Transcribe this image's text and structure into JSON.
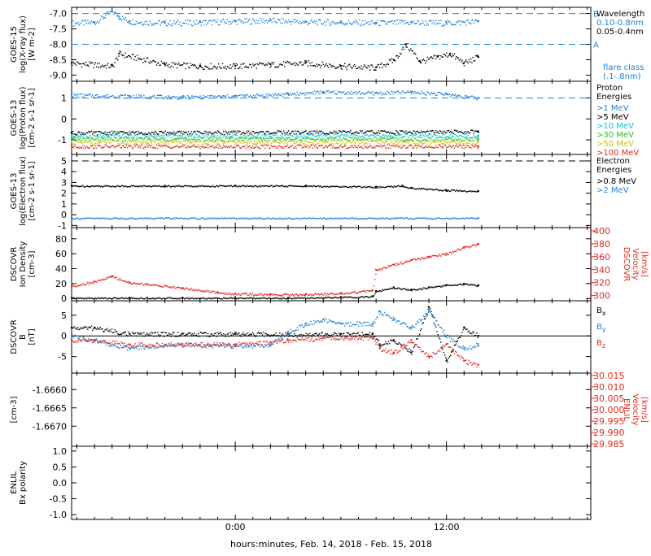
{
  "xaxis": {
    "label": "hours:minutes, Feb. 14, 2018 - Feb. 15, 2018",
    "ticks": [
      "0:00",
      "12:00"
    ],
    "range_hours": [
      -9.3,
      20.2
    ],
    "tick_hours": [
      0,
      12
    ],
    "minor_step_hours": 1,
    "data_end_hours": 13.8
  },
  "colors": {
    "black": "#000000",
    "blue": "#1f7fd6",
    "cyan": "#00c8d8",
    "green": "#33bb22",
    "yellow": "#c8c800",
    "red": "#e02a1f",
    "dashed_blue": "#1f7fd6"
  },
  "chart_data": [
    {
      "type": "scatter",
      "ylabel": [
        "GOES-15",
        "log(X-ray flux)",
        "[W m-2]"
      ],
      "ylim": [
        -9.2,
        -6.8
      ],
      "yticks": [
        -7.0,
        -7.5,
        -8.0,
        -8.5,
        -9.0
      ],
      "ytick_labels": [
        "-7.0",
        "-7.5",
        "-8.0",
        "-8.5",
        "-9.0"
      ],
      "reference_lines": [
        {
          "value": -7.0,
          "label": "B"
        },
        {
          "value": -8.0,
          "label": "A"
        }
      ],
      "legend": {
        "title": "Wavelength",
        "entries": [
          {
            "label": "0.10-0.8nm",
            "color": "blue"
          },
          {
            "label": "0.05-0.4nm",
            "color": "black"
          }
        ],
        "note": [
          "flare class",
          "(.1-.8nm)"
        ]
      },
      "series": [
        {
          "color": "blue",
          "x": [
            -9.3,
            -8.0,
            -7.0,
            -6.6,
            -6.0,
            -4.0,
            -2.0,
            0.0,
            2.0,
            4.0,
            6.0,
            8.0,
            10.0,
            12.0,
            13.8
          ],
          "y": [
            -7.3,
            -7.28,
            -6.92,
            -7.1,
            -7.25,
            -7.3,
            -7.28,
            -7.25,
            -7.22,
            -7.27,
            -7.28,
            -7.3,
            -7.28,
            -7.3,
            -7.25
          ]
        },
        {
          "color": "black",
          "x": [
            -9.3,
            -7.0,
            -6.6,
            -4.0,
            -2.0,
            0.0,
            2.0,
            4.0,
            6.0,
            8.0,
            9.0,
            9.7,
            10.5,
            11.5,
            12.2,
            13.0,
            13.8
          ],
          "y": [
            -8.6,
            -8.7,
            -8.3,
            -8.65,
            -8.7,
            -8.7,
            -8.65,
            -8.6,
            -8.7,
            -8.75,
            -8.5,
            -8.0,
            -8.55,
            -8.4,
            -8.3,
            -8.6,
            -8.4
          ]
        }
      ]
    },
    {
      "type": "scatter",
      "ylabel": [
        "GOES-13",
        "log(Proton flux)",
        "[cm-2 s-1 sr-1]"
      ],
      "ylim": [
        -1.7,
        1.8
      ],
      "yticks": [
        1,
        0,
        -1
      ],
      "ytick_labels": [
        "1",
        "0",
        "-1"
      ],
      "reference_lines": [
        {
          "value": 1.0,
          "label": ""
        }
      ],
      "legend": {
        "title": "Proton\nEnergies",
        "entries": [
          {
            "label": ">1 MeV",
            "color": "blue"
          },
          {
            "label": ">5 MeV",
            "color": "black"
          },
          {
            "label": ">10 MeV",
            "color": "cyan"
          },
          {
            "label": ">30 MeV",
            "color": "green"
          },
          {
            "label": ">50 MeV",
            "color": "yellow"
          },
          {
            "label": ">100 MeV",
            "color": "red"
          }
        ]
      },
      "series": [
        {
          "color": "blue",
          "x": [
            -9.3,
            -6.0,
            -3.0,
            0.0,
            3.0,
            5.0,
            8.0,
            10.0,
            12.0,
            13.8
          ],
          "y": [
            1.15,
            1.1,
            1.05,
            1.1,
            1.2,
            1.3,
            1.25,
            1.3,
            1.2,
            1.0
          ]
        },
        {
          "color": "black",
          "x": [
            -9.3,
            13.8
          ],
          "y": [
            -0.65,
            -0.6
          ]
        },
        {
          "color": "cyan",
          "x": [
            -9.3,
            13.8
          ],
          "y": [
            -0.8,
            -0.8
          ]
        },
        {
          "color": "green",
          "x": [
            -9.3,
            13.8
          ],
          "y": [
            -0.95,
            -0.95
          ]
        },
        {
          "color": "yellow",
          "x": [
            -9.3,
            13.8
          ],
          "y": [
            -1.1,
            -1.1
          ]
        },
        {
          "color": "red",
          "x": [
            -9.3,
            13.8
          ],
          "y": [
            -1.3,
            -1.3
          ]
        }
      ]
    },
    {
      "type": "scatter",
      "ylabel": [
        "GOES-13",
        "log(Electron flux)",
        "[cm-2 s-1 sr-1]"
      ],
      "ylim": [
        -1.2,
        5.6
      ],
      "yticks": [
        5,
        4,
        3,
        2,
        1,
        0,
        -1
      ],
      "ytick_labels": [
        "5",
        "4",
        "3",
        "2",
        "1",
        "0",
        "-1"
      ],
      "reference_lines": [
        {
          "value": 5.0,
          "label": ""
        }
      ],
      "legend": {
        "title": "Electron\nEnergies",
        "entries": [
          {
            "label": ">0.8 MeV",
            "color": "black"
          },
          {
            "label": ">2 MeV",
            "color": "blue"
          }
        ]
      },
      "series": [
        {
          "color": "black",
          "x": [
            -9.3,
            -4.0,
            0.0,
            4.0,
            8.0,
            9.5,
            10.0,
            12.0,
            13.8
          ],
          "y": [
            2.7,
            2.7,
            2.7,
            2.7,
            2.6,
            2.7,
            2.5,
            2.3,
            2.2
          ]
        },
        {
          "color": "blue",
          "x": [
            -9.3,
            13.8
          ],
          "y": [
            -0.3,
            -0.3
          ]
        }
      ]
    },
    {
      "type": "line",
      "ylabel": [
        "DSCOVR",
        "Ion Density",
        "[cm-3]"
      ],
      "ylim": [
        -3,
        95
      ],
      "yticks": [
        80,
        60,
        40,
        20,
        0
      ],
      "ytick_labels": [
        "80",
        "60",
        "40",
        "20",
        "0"
      ],
      "ylabel_right": [
        "DSCOVR",
        "Velocity",
        "[km/s]"
      ],
      "ylim_right": [
        292,
        405
      ],
      "yticks_right": [
        400,
        380,
        360,
        340,
        320,
        300
      ],
      "ytick_labels_right": [
        "400",
        "380",
        "360",
        "340",
        "320",
        "300"
      ],
      "series": [
        {
          "color": "black",
          "axis": "left",
          "x": [
            -9.3,
            -6.0,
            -3.0,
            0.0,
            3.0,
            6.0,
            7.8,
            8.0,
            9.0,
            10.0,
            11.0,
            12.0,
            13.0,
            13.8
          ],
          "y": [
            1,
            1,
            1,
            1,
            1,
            2,
            3,
            10,
            15,
            12,
            15,
            18,
            20,
            18
          ]
        },
        {
          "color": "red",
          "axis": "right",
          "x": [
            -9.3,
            -8.0,
            -7.0,
            -6.0,
            -5.0,
            -3.0,
            -1.0,
            0.0,
            2.0,
            4.0,
            6.0,
            7.8,
            8.0,
            9.0,
            10.0,
            11.0,
            12.0,
            13.0,
            13.8
          ],
          "y": [
            315,
            322,
            330,
            320,
            318,
            312,
            305,
            303,
            302,
            302,
            304,
            308,
            340,
            348,
            355,
            360,
            365,
            375,
            380
          ]
        }
      ]
    },
    {
      "type": "line",
      "ylabel": [
        "DSCOVR",
        "B",
        "[nT]"
      ],
      "ylim": [
        -9,
        8.5
      ],
      "yticks": [
        5,
        0,
        -5
      ],
      "ytick_labels": [
        "5",
        "0",
        "-5"
      ],
      "zero_line": true,
      "legend": {
        "entries": [
          {
            "label": "Bx",
            "color": "black"
          },
          {
            "label": "By",
            "color": "blue"
          },
          {
            "label": "Bz",
            "color": "red"
          }
        ]
      },
      "series": [
        {
          "color": "black",
          "x": [
            -9.3,
            -8.0,
            -6.0,
            -3.0,
            0.0,
            3.0,
            6.0,
            7.8,
            8.2,
            9.0,
            10.0,
            11.0,
            12.0,
            13.0,
            13.8
          ],
          "y": [
            2.0,
            2.0,
            0.5,
            0.5,
            0.5,
            0.5,
            0.5,
            0.5,
            -2.0,
            -1.0,
            -4.0,
            7.0,
            -6.0,
            2.0,
            0.0
          ]
        },
        {
          "color": "blue",
          "x": [
            -9.3,
            -8.0,
            -6.0,
            -3.0,
            0.0,
            2.0,
            3.0,
            4.0,
            5.0,
            6.0,
            7.8,
            8.2,
            9.0,
            10.0,
            11.0,
            12.0,
            13.0,
            13.8
          ],
          "y": [
            0.0,
            -1.0,
            -3.0,
            -2.0,
            -2.5,
            -2.0,
            1.0,
            3.0,
            4.0,
            3.0,
            3.0,
            6.0,
            4.0,
            2.0,
            6.0,
            0.0,
            -3.0,
            -2.0
          ]
        },
        {
          "color": "red",
          "x": [
            -9.3,
            -8.0,
            -6.0,
            -3.0,
            0.0,
            2.0,
            3.0,
            5.0,
            7.8,
            8.2,
            9.0,
            10.0,
            11.0,
            12.0,
            13.0,
            13.8
          ],
          "y": [
            -1.0,
            -1.0,
            -2.0,
            -2.0,
            -2.0,
            -1.5,
            -1.0,
            -0.5,
            -0.5,
            -3.0,
            -4.0,
            -1.0,
            -5.0,
            -2.0,
            -6.0,
            -7.0
          ]
        }
      ]
    },
    {
      "type": "line",
      "ylabel": [
        "[cm-3]"
      ],
      "ylim": [
        -1.66755,
        -1.66555
      ],
      "yticks": [
        -1.666,
        -1.6665,
        -1.667
      ],
      "ytick_labels": [
        "-1.6660",
        "-1.6665",
        "-1.6670"
      ],
      "ylabel_right": [
        "ENLIL",
        "Velocity",
        "[km/s]"
      ],
      "ylim_right": [
        29.984,
        30.016
      ],
      "yticks_right": [
        30.015,
        30.01,
        30.005,
        30.0,
        29.995,
        29.99,
        29.985
      ],
      "ytick_labels_right": [
        "30.015",
        "30.010",
        "30.005",
        "30.000",
        "29.995",
        "29.990",
        "29.985"
      ],
      "series": []
    },
    {
      "type": "line",
      "ylabel": [
        "ENLIL",
        "Bx polarity"
      ],
      "ylim": [
        -1.15,
        1.15
      ],
      "yticks": [
        1.0,
        0.5,
        0.0,
        -0.5,
        -1.0
      ],
      "ytick_labels": [
        "1.0",
        "0.5",
        "0.0",
        "-0.5",
        "-1.0"
      ],
      "series": []
    }
  ]
}
